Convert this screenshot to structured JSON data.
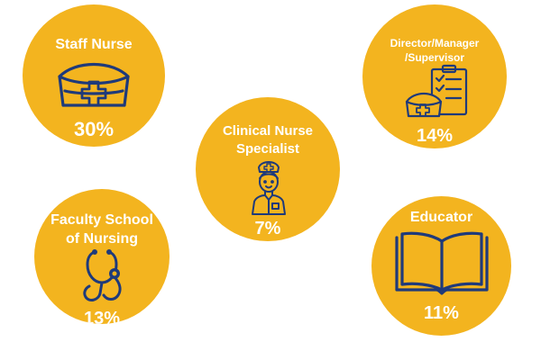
{
  "colors": {
    "circle": "#f3b41f",
    "icon": "#1f3a7a",
    "text": "#ffffff"
  },
  "items": [
    {
      "label": "Staff Nurse",
      "value": "30%",
      "icon": "nurse-cap-icon"
    },
    {
      "label_lines": [
        "Director/Manager",
        "/Supervisor"
      ],
      "value": "14%",
      "icon": "clipboard-with-nurse-cap-icon"
    },
    {
      "label_lines": [
        "Clinical Nurse",
        "Specialist"
      ],
      "value": "7%",
      "icon": "nurse-icon"
    },
    {
      "label_lines": [
        "Faculty School",
        "of Nursing"
      ],
      "value": "13%",
      "icon": "stethoscope-icon"
    },
    {
      "label": "Educator",
      "value": "11%",
      "icon": "open-book-icon"
    }
  ]
}
